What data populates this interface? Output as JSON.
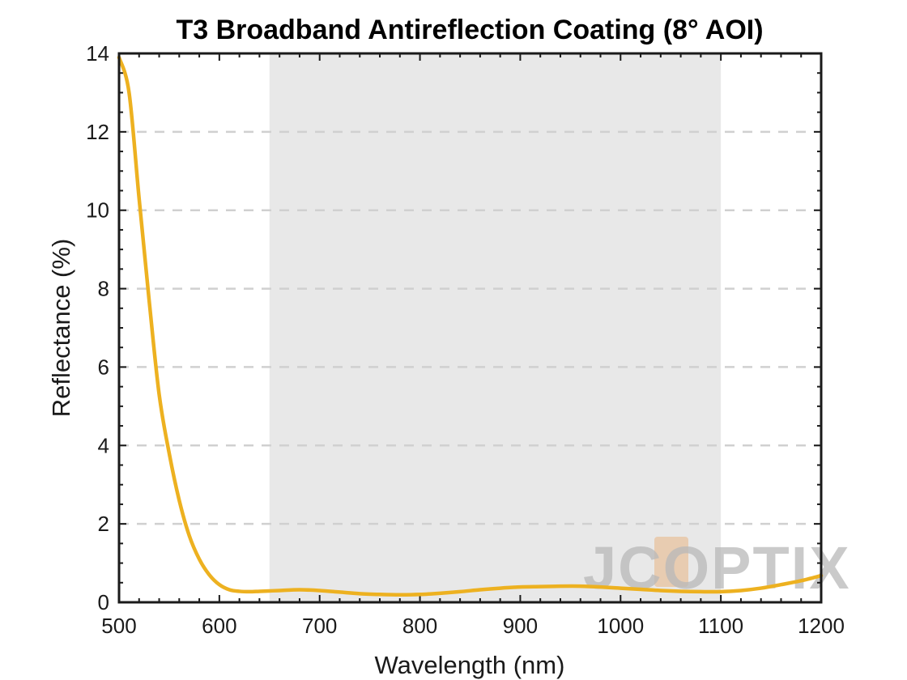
{
  "chart_data": {
    "type": "line",
    "title": "T3 Broadband Antireflection Coating (8° AOI)",
    "xlabel": "Wavelength (nm)",
    "ylabel": "Reflectance (%)",
    "xlim": [
      500,
      1200
    ],
    "ylim": [
      0,
      14
    ],
    "xticks": [
      500,
      600,
      700,
      800,
      900,
      1000,
      1100,
      1200
    ],
    "yticks": [
      0,
      2,
      4,
      6,
      8,
      10,
      12,
      14
    ],
    "grid": "horizontal dashed",
    "highlight_band": [
      650,
      1100
    ],
    "series": [
      {
        "color": "#EDB120",
        "x": [
          500,
          510,
          520,
          530,
          540,
          550,
          560,
          570,
          580,
          590,
          600,
          610,
          620,
          630,
          640,
          650,
          660,
          680,
          700,
          720,
          740,
          760,
          780,
          800,
          820,
          840,
          860,
          880,
          900,
          920,
          940,
          960,
          980,
          1000,
          1020,
          1040,
          1060,
          1080,
          1100,
          1120,
          1140,
          1160,
          1180,
          1200
        ],
        "values": [
          13.9,
          13.0,
          10.3,
          7.7,
          5.3,
          3.8,
          2.6,
          1.7,
          1.1,
          0.7,
          0.45,
          0.32,
          0.28,
          0.27,
          0.28,
          0.29,
          0.3,
          0.32,
          0.3,
          0.26,
          0.22,
          0.2,
          0.19,
          0.2,
          0.23,
          0.27,
          0.32,
          0.36,
          0.39,
          0.4,
          0.41,
          0.41,
          0.39,
          0.36,
          0.33,
          0.3,
          0.28,
          0.27,
          0.27,
          0.3,
          0.36,
          0.45,
          0.55,
          0.68
        ]
      }
    ]
  },
  "watermark": {
    "text": "JCOPTIX",
    "accent_color": "#E8C09A"
  }
}
